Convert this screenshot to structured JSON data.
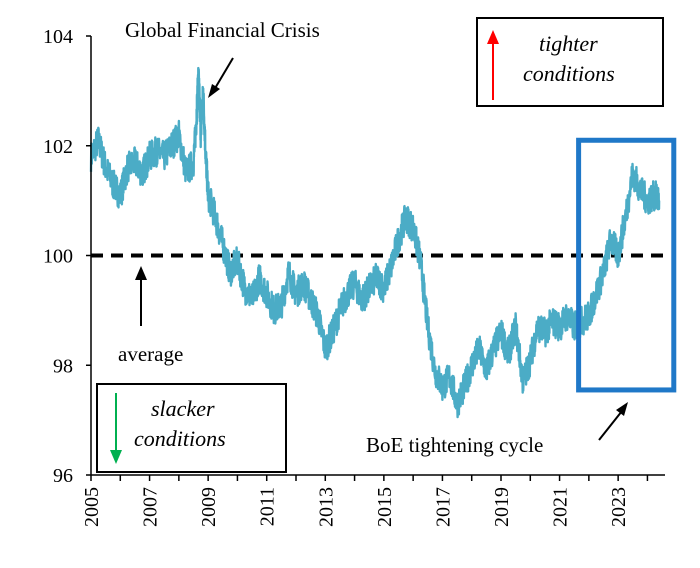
{
  "chart_data": {
    "type": "line",
    "title": "",
    "xlabel": "",
    "ylabel": "",
    "xlim": [
      2005,
      2024.6
    ],
    "ylim": [
      96,
      104
    ],
    "x_ticks": [
      "2005",
      "2007",
      "2009",
      "2011",
      "2013",
      "2015",
      "2017",
      "2019",
      "2021",
      "2023"
    ],
    "y_ticks": [
      "96",
      "98",
      "100",
      "102",
      "104"
    ],
    "grid": false,
    "legend": "none",
    "colors": {
      "series": "#4bacc6",
      "average_line": "#000000",
      "highlight_box": "#1f78c8",
      "tighter_arrow": "#ff0000",
      "slacker_arrow": "#00b050",
      "label_box": "#000000"
    },
    "average_level": 100,
    "highlight_x_range": [
      2021.65,
      2024.9
    ],
    "highlight_y_range": [
      97.55,
      102.1
    ],
    "annotations": {
      "gfc": "Global Financial Crisis",
      "average": "average",
      "boe": "BoE tightening cycle",
      "tighter_line1": "tighter",
      "tighter_line2": "conditions",
      "slacker_line1": "slacker",
      "slacker_line2": "conditions"
    },
    "series": [
      {
        "x": [
          2005.0,
          2005.25,
          2005.5,
          2005.75,
          2006.0,
          2006.25,
          2006.5,
          2006.75,
          2007.0,
          2007.25,
          2007.5,
          2007.75,
          2008.0,
          2008.25,
          2008.5,
          2008.6,
          2008.67,
          2008.75,
          2008.83,
          2008.92,
          2009.0,
          2009.25,
          2009.5,
          2009.75,
          2010.0,
          2010.25,
          2010.5,
          2010.75,
          2011.0,
          2011.25,
          2011.5,
          2011.75,
          2012.0,
          2012.25,
          2012.5,
          2012.75,
          2013.0,
          2013.25,
          2013.5,
          2013.75,
          2014.0,
          2014.25,
          2014.5,
          2014.75,
          2015.0,
          2015.25,
          2015.5,
          2015.75,
          2016.0,
          2016.25,
          2016.5,
          2016.75,
          2017.0,
          2017.25,
          2017.5,
          2017.75,
          2018.0,
          2018.25,
          2018.5,
          2018.75,
          2019.0,
          2019.25,
          2019.5,
          2019.75,
          2020.0,
          2020.25,
          2020.5,
          2020.75,
          2021.0,
          2021.25,
          2021.5,
          2021.75,
          2022.0,
          2022.25,
          2022.5,
          2022.75,
          2023.0,
          2023.25,
          2023.5,
          2023.75,
          2024.0,
          2024.25,
          2024.4
        ],
        "y": [
          101.8,
          102.1,
          101.6,
          101.3,
          101.1,
          101.6,
          101.7,
          101.5,
          101.8,
          101.9,
          101.8,
          102.0,
          102.2,
          101.5,
          101.7,
          102.5,
          103.3,
          102.2,
          103.0,
          101.8,
          101.1,
          100.7,
          100.2,
          99.7,
          99.9,
          99.4,
          99.2,
          99.6,
          99.3,
          99.0,
          99.1,
          99.7,
          99.3,
          99.5,
          99.2,
          98.9,
          98.3,
          98.6,
          99.0,
          99.3,
          99.5,
          99.2,
          99.4,
          99.6,
          99.4,
          99.8,
          100.3,
          100.7,
          100.5,
          99.9,
          98.7,
          97.9,
          97.6,
          97.8,
          97.3,
          97.6,
          98.0,
          98.3,
          97.9,
          98.3,
          98.6,
          98.2,
          98.7,
          97.7,
          98.1,
          98.7,
          98.6,
          98.8,
          98.7,
          98.9,
          98.7,
          98.8,
          98.9,
          99.3,
          99.7,
          100.3,
          100.0,
          100.7,
          101.5,
          101.2,
          101.0,
          101.1,
          101.0
        ]
      }
    ]
  }
}
